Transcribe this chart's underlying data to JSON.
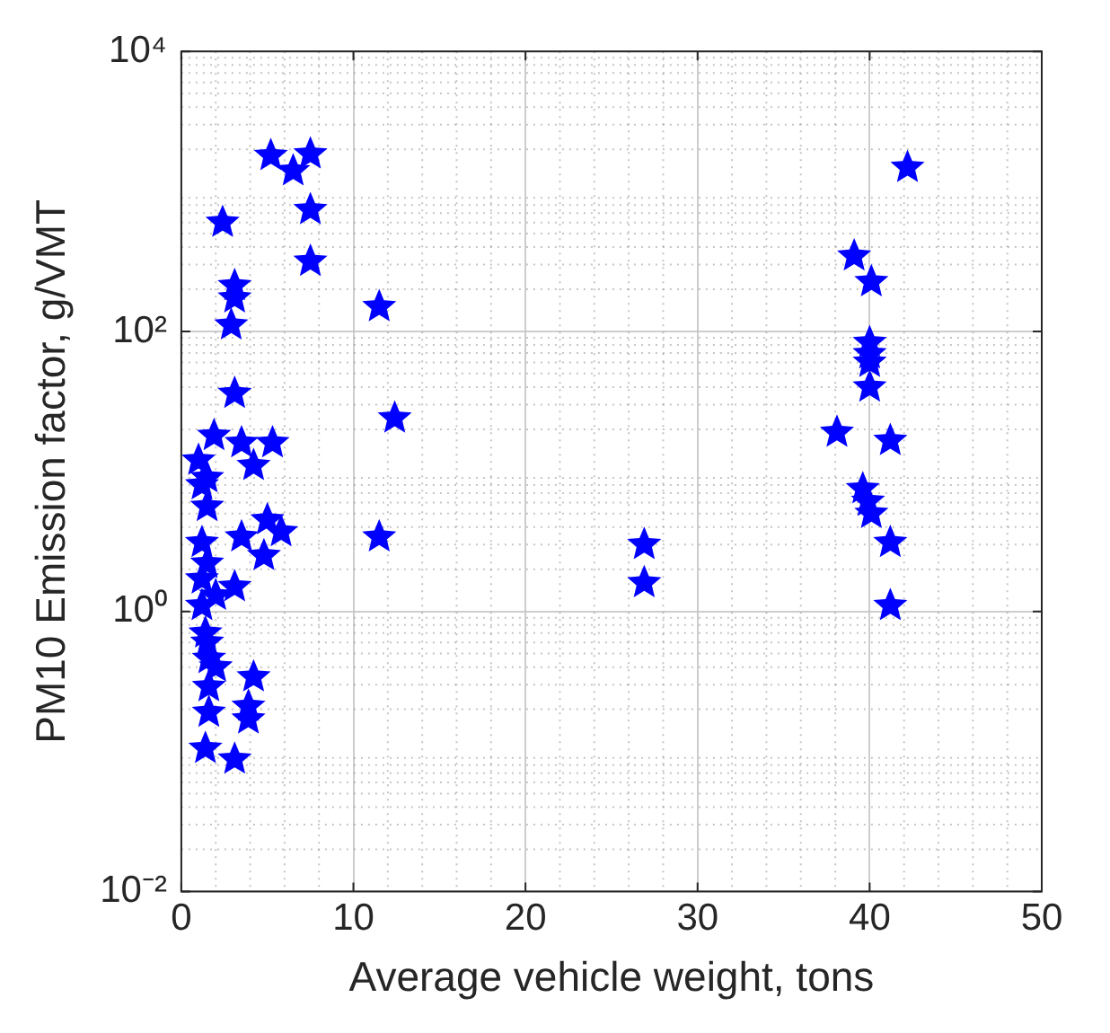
{
  "chart_data": {
    "type": "scatter",
    "xlabel": "Average vehicle weight, tons",
    "ylabel": "PM10 Emission factor, g/VMT",
    "log": "y",
    "grid": true,
    "marker": "star",
    "xlim": [
      0,
      50
    ],
    "xticks": [
      0,
      10,
      20,
      30,
      40,
      50
    ],
    "ylim": [
      0.01,
      10000
    ],
    "yticks": [
      {
        "value": 0.01,
        "label": "10⁻²"
      },
      {
        "value": 1,
        "label": "10⁰"
      },
      {
        "value": 100,
        "label": "10²"
      },
      {
        "value": 10000,
        "label": "10⁴"
      }
    ],
    "series": [
      {
        "color": "#0000ff",
        "x": [
          5.2,
          7.5,
          6.5,
          7.5,
          7.5,
          2.4,
          3.1,
          3.1,
          2.9,
          11.5,
          3.1,
          12.4,
          11.5,
          1.9,
          3.5,
          5.3,
          1.0,
          4.2,
          1.2,
          1.5,
          5.0,
          5.8,
          3.5,
          4.8,
          3.1,
          1.2,
          1.2,
          1.2,
          1.4,
          1.6,
          4.2,
          1.6,
          3.9,
          1.6,
          3.9,
          1.4,
          3.1,
          1.5,
          1.5,
          2.0,
          1.5,
          2.0,
          26.9,
          26.9,
          42.2,
          39.1,
          40.1,
          40.0,
          40.0,
          40.0,
          40.0,
          38.1,
          41.2,
          39.6,
          39.9,
          40.1,
          41.2,
          41.2
        ],
        "values": [
          1800,
          1850,
          1400,
          740,
          316,
          600,
          212,
          173,
          111,
          150,
          36,
          24,
          3.4,
          18,
          16,
          16,
          12,
          11,
          8,
          5.6,
          4.5,
          3.7,
          3.4,
          2.5,
          1.5,
          3.1,
          1.7,
          1.1,
          0.7,
          0.46,
          0.34,
          0.29,
          0.21,
          0.19,
          0.17,
          0.105,
          0.088,
          9,
          2.2,
          1.3,
          0.6,
          0.4,
          3,
          1.6,
          1480,
          345,
          226,
          83,
          69,
          60,
          40,
          19,
          16.6,
          7.5,
          6.1,
          5,
          3.1,
          1.1
        ]
      }
    ]
  }
}
